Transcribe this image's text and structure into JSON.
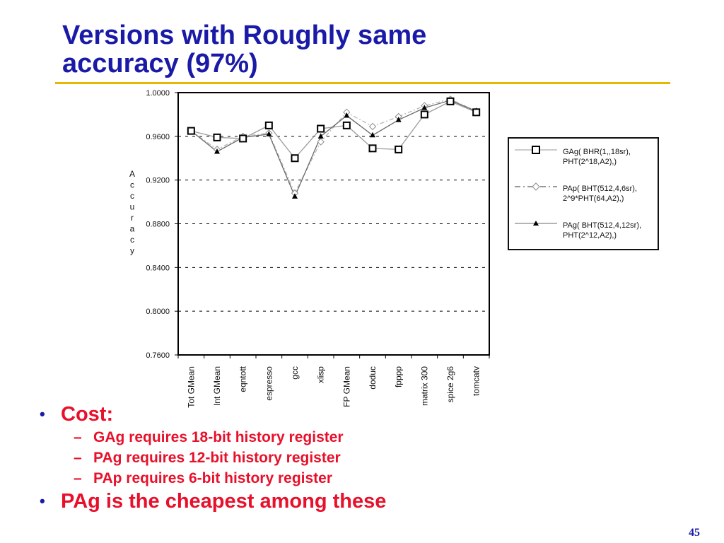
{
  "slide": {
    "title_line1": "Versions with Roughly same",
    "title_line2": "accuracy (97%)",
    "page_number": "45",
    "colors": {
      "title": "#1a1aa8",
      "rule": "#e8b800",
      "bullets": "#e8102a"
    }
  },
  "bullets": [
    {
      "text": "Cost:",
      "sub": [
        "GAg requires 18-bit history register",
        "PAg requires 12-bit history register",
        "PAp requires 6-bit history register"
      ]
    },
    {
      "text": "PAg is the cheapest among these",
      "sub": []
    }
  ],
  "chart_data": {
    "type": "line",
    "title": "",
    "xlabel": "",
    "ylabel": "Accuracy",
    "ylim": [
      0.76,
      1.0
    ],
    "yticks": [
      "1.0000",
      "0.9600",
      "0.9200",
      "0.8800",
      "0.8400",
      "0.8000",
      "0.7600"
    ],
    "grid": "horizontal dashed",
    "legend_position": "right",
    "categories": [
      "Tot GMean",
      "Int GMean",
      "eqntott",
      "espresso",
      "gcc",
      "xlisp",
      "FP GMean",
      "doduc",
      "fpppp",
      "matrix 300",
      "spice 2g6",
      "tomcatv"
    ],
    "series": [
      {
        "name": "GAg( BHR(1,,18sr), PHT(2^18,A2),)",
        "marker": "square",
        "values": [
          0.965,
          0.959,
          0.958,
          0.97,
          0.94,
          0.967,
          0.97,
          0.949,
          0.948,
          0.98,
          0.992,
          0.982
        ]
      },
      {
        "name": "PAp( BHT(512,4,6sr), 2^9*PHT(64,A2),)",
        "marker": "diamond",
        "values": [
          0.965,
          0.948,
          0.96,
          0.963,
          0.908,
          0.955,
          0.982,
          0.969,
          0.978,
          0.988,
          0.994,
          0.983
        ]
      },
      {
        "name": "PAg( BHT(512,4,12sr), PHT(2^12,A2),)",
        "marker": "triangle",
        "values": [
          0.965,
          0.946,
          0.959,
          0.962,
          0.905,
          0.96,
          0.979,
          0.961,
          0.975,
          0.986,
          0.993,
          0.983
        ]
      }
    ]
  }
}
